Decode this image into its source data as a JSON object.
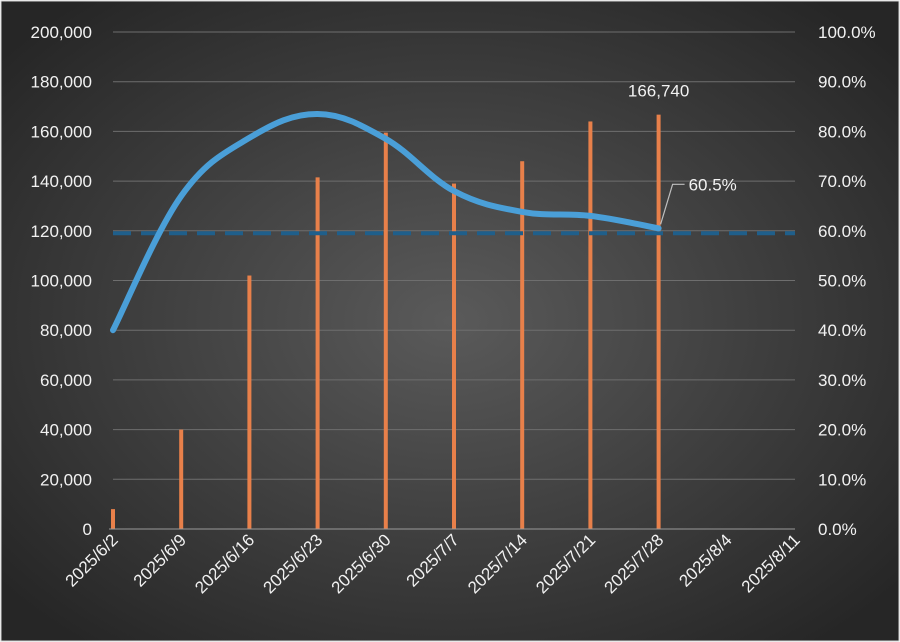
{
  "chart_data": {
    "type": "bar",
    "title": "",
    "xlabel": "",
    "ylabel": "",
    "y2label": "",
    "categories": [
      "2025/6/2",
      "2025/6/9",
      "2025/6/16",
      "2025/6/23",
      "2025/6/30",
      "2025/7/7",
      "2025/7/14",
      "2025/7/21",
      "2025/7/28",
      "2025/8/4",
      "2025/8/11"
    ],
    "y_ticks": [
      "0",
      "20,000",
      "40,000",
      "60,000",
      "80,000",
      "100,000",
      "120,000",
      "140,000",
      "160,000",
      "180,000",
      "200,000"
    ],
    "y2_ticks": [
      "0.0%",
      "10.0%",
      "20.0%",
      "30.0%",
      "40.0%",
      "50.0%",
      "60.0%",
      "70.0%",
      "80.0%",
      "90.0%",
      "100.0%"
    ],
    "ylim": [
      0,
      200000
    ],
    "y2lim": [
      0,
      1.0
    ],
    "grid": true,
    "legend": "none",
    "series": [
      {
        "type": "bar",
        "axis": "left",
        "color": "#e8804a",
        "values": [
          8000,
          40000,
          102000,
          141500,
          159500,
          139000,
          148000,
          164000,
          166740,
          null,
          null
        ]
      },
      {
        "type": "line",
        "axis": "right",
        "color": "#4a9fd8",
        "values": [
          0.4,
          0.67,
          0.787,
          0.835,
          0.785,
          0.68,
          0.638,
          0.63,
          0.605,
          null,
          null
        ]
      },
      {
        "type": "line",
        "axis": "right",
        "style": "dashed",
        "color": "#1f5f8b",
        "values": [
          0.595,
          0.595,
          0.595,
          0.595,
          0.595,
          0.595,
          0.595,
          0.595,
          0.595,
          0.595,
          0.595
        ]
      }
    ],
    "annotations": {
      "bar_label": {
        "category": "2025/7/28",
        "text": "166,740"
      },
      "line_label": {
        "category": "2025/7/28",
        "text": "60.5%"
      }
    }
  }
}
